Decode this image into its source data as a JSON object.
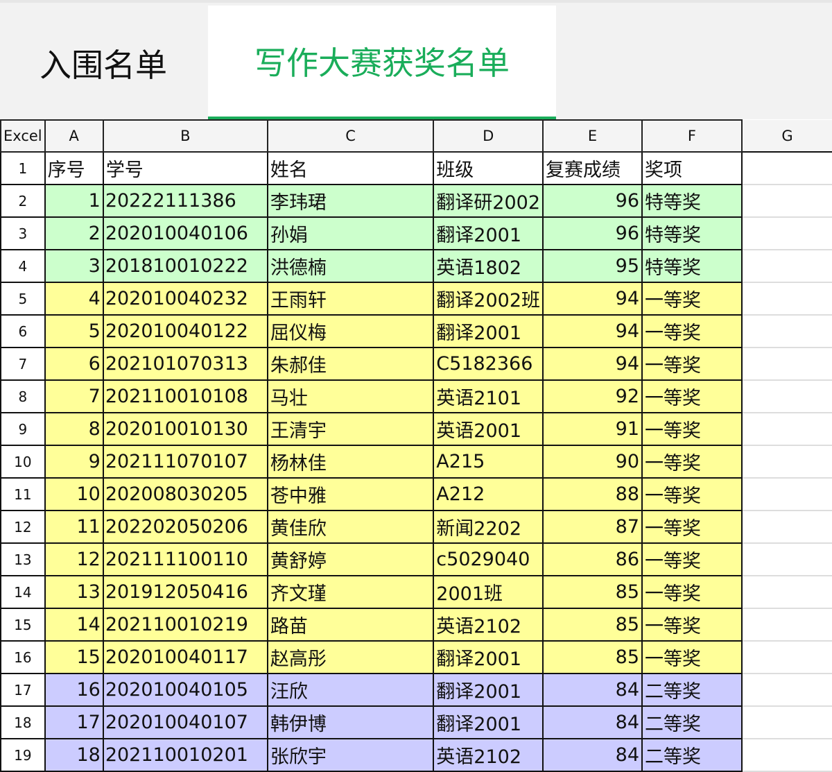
{
  "tabs": [
    {
      "label": "入围名单",
      "active": false
    },
    {
      "label": "写作大赛获奖名单",
      "active": true
    }
  ],
  "accent_color": "#1aad5a",
  "award_colors": {
    "特等奖": "#ccffcc",
    "一等奖": "#ffff99",
    "二等奖": "#ccccff"
  },
  "sheet": {
    "corner": "Excel",
    "columns": [
      "A",
      "B",
      "C",
      "D",
      "E",
      "F",
      "G"
    ],
    "headers": [
      "序号",
      "学号",
      "姓名",
      "班级",
      "复赛成绩",
      "奖项"
    ],
    "rows": [
      [
        "1",
        "20222111386",
        "李玮珺",
        "翻译研2002",
        "96",
        "特等奖"
      ],
      [
        "2",
        "202010040106",
        "孙娟",
        "翻译2001",
        "96",
        "特等奖"
      ],
      [
        "3",
        "201810010222",
        "洪德楠",
        "英语1802",
        "95",
        "特等奖"
      ],
      [
        "4",
        "202010040232",
        "王雨轩",
        "翻译2002班",
        "94",
        "一等奖"
      ],
      [
        "5",
        "202010040122",
        "屈仪梅",
        "翻译2001",
        "94",
        "一等奖"
      ],
      [
        "6",
        "202101070313",
        "朱郝佳",
        "C5182366",
        "94",
        "一等奖"
      ],
      [
        "7",
        "202110010108",
        "马壮",
        "英语2101",
        "92",
        "一等奖"
      ],
      [
        "8",
        "202010010130",
        "王清宇",
        "英语2001",
        "91",
        "一等奖"
      ],
      [
        "9",
        "202111070107",
        "杨林佳",
        "A215",
        "90",
        "一等奖"
      ],
      [
        "10",
        "202008030205",
        "苍中雅",
        "A212",
        "88",
        "一等奖"
      ],
      [
        "11",
        "202202050206",
        "黄佳欣",
        "新闻2202",
        "87",
        "一等奖"
      ],
      [
        "12",
        "202111100110",
        "黄舒婷",
        "c5029040",
        "86",
        "一等奖"
      ],
      [
        "13",
        "201912050416",
        "齐文瑾",
        "2001班",
        "85",
        "一等奖"
      ],
      [
        "14",
        "202110010219",
        "路苗",
        "英语2102",
        "85",
        "一等奖"
      ],
      [
        "15",
        "202010040117",
        "赵高彤",
        "翻译2001",
        "85",
        "一等奖"
      ],
      [
        "16",
        "202010040105",
        "汪欣",
        "翻译2001",
        "84",
        "二等奖"
      ],
      [
        "17",
        "202010040107",
        "韩伊博",
        "翻译2001",
        "84",
        "二等奖"
      ],
      [
        "18",
        "202110010201",
        "张欣宇",
        "英语2102",
        "84",
        "二等奖"
      ]
    ]
  }
}
